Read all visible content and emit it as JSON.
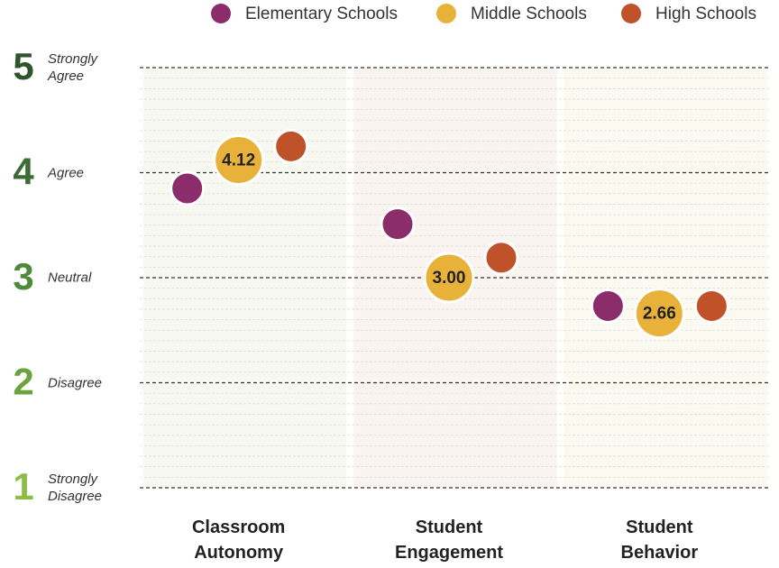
{
  "chart_data": {
    "type": "dot",
    "categories": [
      "Classroom Autonomy",
      "Student Engagement",
      "Student Behavior"
    ],
    "series": [
      {
        "name": "Elementary Schools",
        "color": "#8b2d6b",
        "values": [
          3.85,
          3.51,
          2.73
        ]
      },
      {
        "name": "Middle Schools",
        "color": "#e8b23a",
        "values": [
          4.12,
          3.0,
          2.66
        ],
        "value_labels": [
          "4.12",
          "3.00",
          "2.66"
        ]
      },
      {
        "name": "High Schools",
        "color": "#c0522a",
        "values": [
          4.25,
          3.19,
          2.73
        ]
      }
    ],
    "ylim": [
      1,
      5
    ],
    "yticks": [
      1,
      2,
      3,
      4,
      5
    ],
    "ytick_descriptions": [
      "Strongly Disagree",
      "Disagree",
      "Neutral",
      "Agree",
      "Strongly Agree"
    ],
    "ytick_colors": [
      "#8dbd46",
      "#6ca33d",
      "#4e8a3a",
      "#3c6c35",
      "#2e552d"
    ],
    "band_colors": [
      "#f7f9f1",
      "#faf4f0",
      "#fbfaf0"
    ],
    "grid": true,
    "legend": "top"
  }
}
